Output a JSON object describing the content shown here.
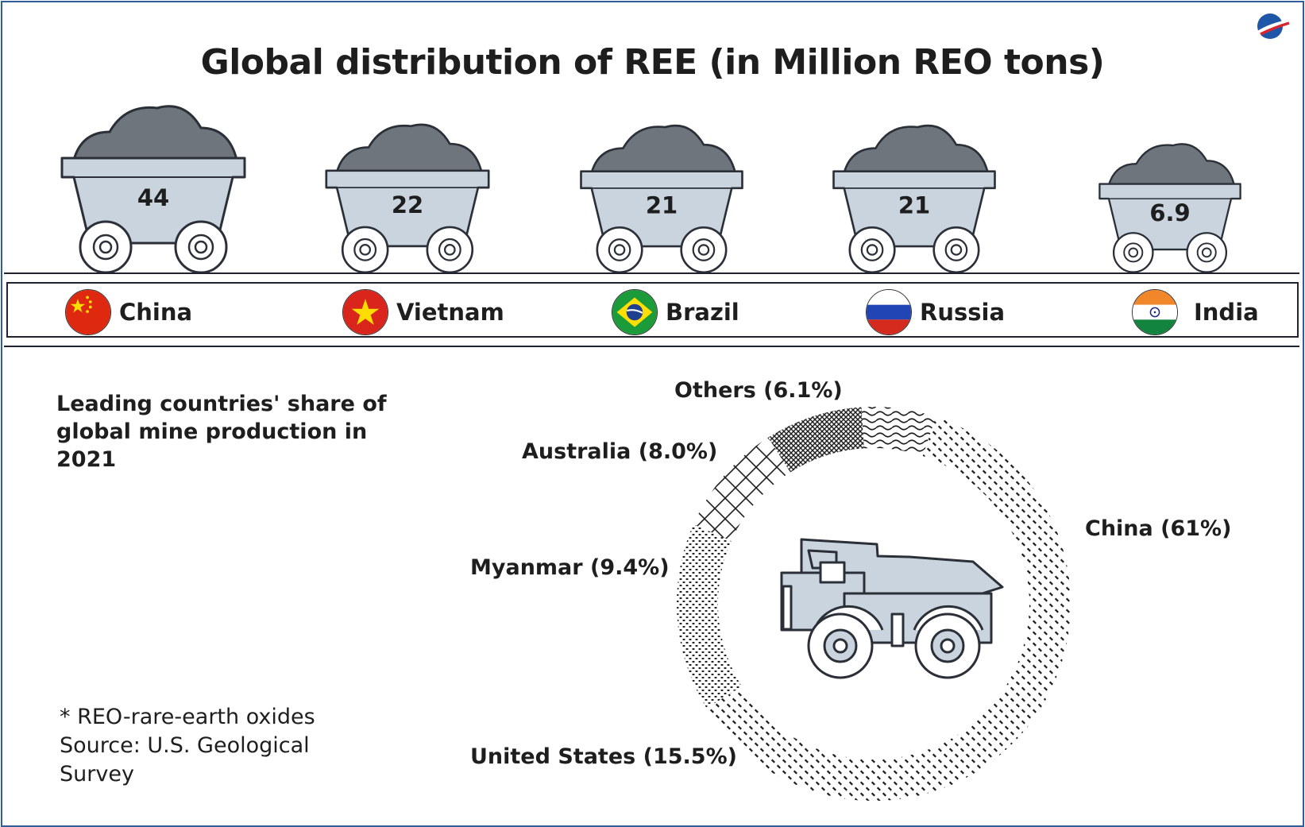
{
  "title": "Global distribution of REE (in Million REO tons)",
  "reserves": {
    "countries": [
      "China",
      "Vietnam",
      "Brazil",
      "Russia",
      "India"
    ],
    "values": [
      "44",
      "22",
      "21",
      "21",
      "6.9"
    ],
    "flags": [
      "china-flag-icon",
      "vietnam-flag-icon",
      "brazil-flag-icon",
      "russia-flag-icon",
      "india-flag-icon"
    ]
  },
  "subtitle": "Leading countries' share of global mine production in 2021",
  "footnote": {
    "line1": "* REO-rare-earth oxides",
    "line2": "Source: U.S. Geological",
    "line3": "Survey"
  },
  "chart_data": [
    {
      "type": "bar",
      "categories": [
        "China",
        "Vietnam",
        "Brazil",
        "Russia",
        "India"
      ],
      "values": [
        44,
        22,
        21,
        21,
        6.9
      ],
      "title": "Global distribution of REE (in Million REO tons)"
    },
    {
      "type": "pie",
      "title": "Leading countries' share of global mine production in 2021",
      "slices": [
        {
          "label": "China (61%)",
          "value": 61
        },
        {
          "label": "United States (15.5%)",
          "value": 15.5
        },
        {
          "label": "Myanmar (9.4%)",
          "value": 9.4
        },
        {
          "label": "Australia (8.0%)",
          "value": 8.0
        },
        {
          "label": "Others  (6.1%)",
          "value": 6.1
        }
      ]
    }
  ],
  "colors": {
    "border": "#2e5f9a",
    "cart_body": "#c9d4de",
    "ore": "#6f757c",
    "outline": "#2b3038",
    "text": "#1e1e1e"
  }
}
